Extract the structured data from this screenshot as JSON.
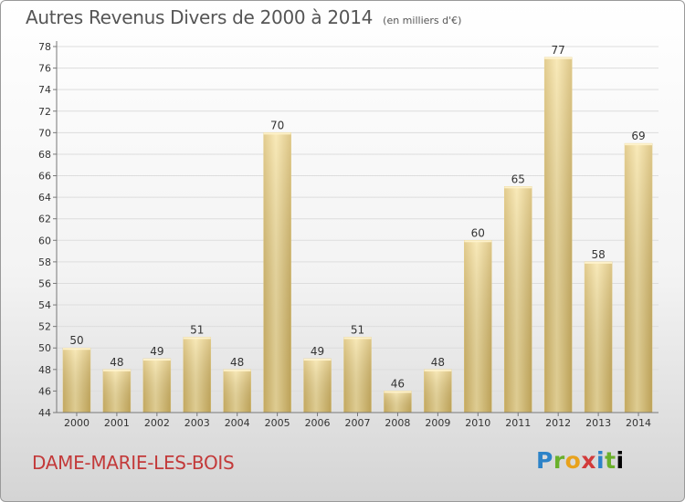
{
  "chart_data": {
    "type": "bar",
    "title": "Autres Revenus Divers de 2000 à 2014",
    "subtitle": "(en milliers d'€)",
    "categories": [
      "2000",
      "2001",
      "2002",
      "2003",
      "2004",
      "2005",
      "2006",
      "2007",
      "2008",
      "2009",
      "2010",
      "2011",
      "2012",
      "2013",
      "2014"
    ],
    "values": [
      50,
      48,
      49,
      51,
      48,
      70,
      49,
      51,
      46,
      48,
      60,
      65,
      77,
      58,
      69
    ],
    "ylim": [
      44,
      78
    ],
    "yticks": [
      44,
      46,
      48,
      50,
      52,
      54,
      56,
      58,
      60,
      62,
      64,
      66,
      68,
      70,
      72,
      74,
      76,
      78
    ],
    "grid": "horizontal",
    "xlabel": "",
    "ylabel": ""
  },
  "location": "DAME-MARIE-LES-BOIS",
  "logo": {
    "text": "Proxiti"
  },
  "colors": {
    "bar": "#e8cf83",
    "bar_highlight": "#f9e8b0",
    "bar_shadow": "#c9ad5e",
    "grid": "#dddddd",
    "axis": "#777777",
    "text": "#333333",
    "location": "#c33a3a"
  }
}
